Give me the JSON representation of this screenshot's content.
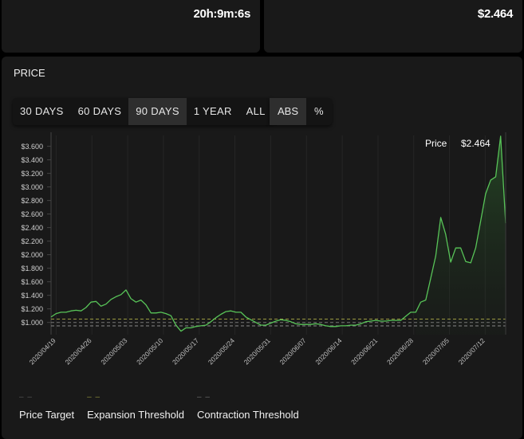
{
  "stats": {
    "left_value": "20h:9m:6s",
    "right_value": "$2.464"
  },
  "panel": {
    "title": "PRICE",
    "ranges": [
      "30 DAYS",
      "60 DAYS",
      "90 DAYS",
      "1 YEAR",
      "ALL"
    ],
    "active_range": "90 DAYS",
    "modes": [
      "ABS",
      "%"
    ],
    "active_mode": "ABS"
  },
  "tooltip": {
    "label": "Price",
    "value": "$2.464"
  },
  "legend": [
    {
      "name": "Price Target",
      "color": "#555555"
    },
    {
      "name": "Expansion Threshold",
      "color": "#8a8a3a"
    },
    {
      "name": "Contraction Threshold",
      "color": "#6a6a6a"
    }
  ],
  "colors": {
    "line": "#58c458",
    "target": "#777777",
    "expansion": "#9a9a40",
    "contraction": "#8a8a8a"
  },
  "chart_data": {
    "type": "line",
    "ylim": [
      0.82,
      3.76
    ],
    "yticks": [
      "$1.000",
      "$1.200",
      "$1.400",
      "$1.600",
      "$1.800",
      "$2.000",
      "$2.200",
      "$2.400",
      "$2.600",
      "$2.800",
      "$3.000",
      "$3.200",
      "$3.400",
      "$3.600"
    ],
    "ytick_values": [
      1.0,
      1.2,
      1.4,
      1.6,
      1.8,
      2.0,
      2.2,
      2.4,
      2.6,
      2.8,
      3.0,
      3.2,
      3.4,
      3.6
    ],
    "xticks": [
      "2020/04/19",
      "2020/04/26",
      "2020/05/03",
      "2020/05/10",
      "2020/05/17",
      "2020/05/24",
      "2020/05/31",
      "2020/06/07",
      "2020/06/14",
      "2020/06/21",
      "2020/06/28",
      "2020/07/05",
      "2020/07/12"
    ],
    "x_start": "2020/04/18",
    "x_end": "2020/07/16",
    "series": [
      {
        "values": [
          1.08,
          1.13,
          1.15,
          1.15,
          1.17,
          1.18,
          1.17,
          1.22,
          1.3,
          1.31,
          1.24,
          1.27,
          1.34,
          1.38,
          1.41,
          1.48,
          1.35,
          1.3,
          1.33,
          1.26,
          1.14,
          1.14,
          1.15,
          1.13,
          1.1,
          0.96,
          0.87,
          0.92,
          0.92,
          0.94,
          0.95,
          0.96,
          1.01,
          1.07,
          1.12,
          1.16,
          1.17,
          1.15,
          1.15,
          1.08,
          1.04,
          1.0,
          0.96,
          0.96,
          0.99,
          1.02,
          1.04,
          1.03,
          1.01,
          0.98,
          0.97,
          0.97,
          0.97,
          0.98,
          0.97,
          0.95,
          0.94,
          0.94,
          0.95,
          0.95,
          0.96,
          0.96,
          0.98,
          1.01,
          1.02,
          1.03,
          1.02,
          1.02,
          1.03,
          1.03,
          1.03,
          1.09,
          1.15,
          1.15,
          1.3,
          1.33,
          1.65,
          1.98,
          2.55,
          2.3,
          1.89,
          2.1,
          2.1,
          1.9,
          1.88,
          2.1,
          2.5,
          2.9,
          3.1,
          3.15,
          3.75,
          2.464
        ]
      }
    ],
    "thresholds": {
      "price_target": 1.0,
      "expansion": 1.05,
      "contraction": 0.95
    }
  }
}
